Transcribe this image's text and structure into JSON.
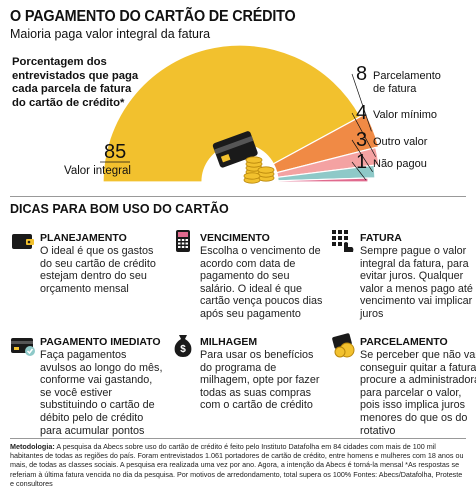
{
  "header": {
    "title": "O PAGAMENTO DO CARTÃO DE CRÉDITO",
    "subtitle": "Maioria paga valor integral da fatura"
  },
  "chart_description": "Porcentagem dos entrevistados que paga cada parcela de fatura do cartão de crédito*",
  "colors": {
    "gold": "#F2C12E",
    "orange": "#F08A45",
    "salmon": "#F4A2A2",
    "teal": "#8EC9C8",
    "pink": "#E06A8E"
  },
  "chart_data": {
    "type": "pie",
    "subtype": "half-donut",
    "unit": "%",
    "slices": [
      {
        "label": "Valor integral",
        "value": 85,
        "color": "#F2C12E"
      },
      {
        "label": "Parcelamento de fatura",
        "value": 8,
        "color": "#F08A45"
      },
      {
        "label": "Valor mínimo",
        "value": 4,
        "color": "#F4A2A2"
      },
      {
        "label": "Outro valor",
        "value": 3,
        "color": "#8EC9C8"
      },
      {
        "label": "Não pagou",
        "value": 1,
        "color": "#E06A8E"
      }
    ]
  },
  "tips_heading": "DICAS PARA BOM USO DO CARTÃO",
  "tips": [
    {
      "icon": "wallet-icon",
      "title": "PLANEJAMENTO",
      "body": "O ideal é que os gastos do seu cartão de crédito estejam dentro do seu orçamento mensal"
    },
    {
      "icon": "card-machine-icon",
      "title": "VENCIMENTO",
      "body": "Escolha o vencimento de acordo com data de pagamento do seu salário. O ideal é que cartão vença poucos dias após seu pagamento"
    },
    {
      "icon": "keypad-hand-icon",
      "title": "FATURA",
      "body": "Sempre pague o valor integral da fatura, para evitar juros. Qualquer valor a menos pago até o vencimento vai implicar juros"
    },
    {
      "icon": "card-check-icon",
      "title": "PAGAMENTO IMEDIATO",
      "body": "Faça pagamentos avulsos ao longo do mês, conforme vai gastando, se você estiver substituindo o cartão de débito pelo de crédito para acumular pontos"
    },
    {
      "icon": "money-bag-icon",
      "title": "MILHAGEM",
      "body": "Para usar os benefícios do programa de milhagem, opte por fazer todas as suas compras com o cartão de crédito"
    },
    {
      "icon": "coins-card-icon",
      "title": "PARCELAMENTO",
      "body": "Se perceber que não vai conseguir quitar a fatura, procure a administradora para parcelar o valor, pois isso implica juros menores do que os do rotativo"
    }
  ],
  "methodology": {
    "label": "Metodologia:",
    "text": "A pesquisa da Abecs sobre uso do cartão de crédito é feito pelo Instituto Datafolha em 84 cidades com mais de 100 mil habitantes de todas as regiões do país. Foram entrevistados 1.061 portadores de cartão de crédito, entre homens e mulheres com 18 anos ou mais, de todas as classes sociais. A pesquisa era realizada uma vez por ano. Agora, a intenção da Abecs é torná-la mensal",
    "footnote": "*As respostas se referiam à última fatura vencida no dia da pesquisa. Por motivos de arredondamento, total supera os 100%",
    "sources": "Fontes: Abecs/Datafolha, Proteste e consultores"
  }
}
